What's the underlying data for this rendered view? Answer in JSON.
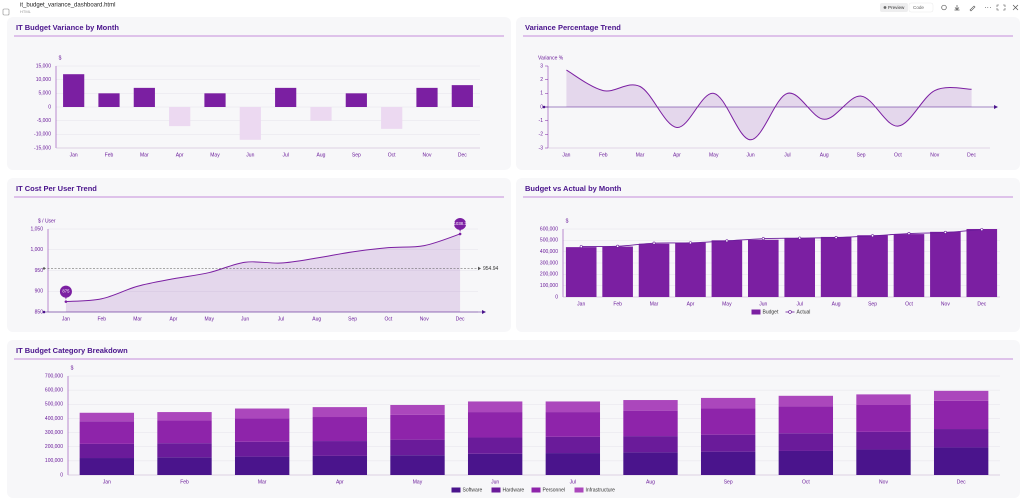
{
  "header": {
    "file_name": "it_budget_variance_dashboard.html",
    "file_type": "HTML",
    "preview_button": "Preview",
    "code_button": "Code"
  },
  "chart_data": [
    {
      "type": "bar",
      "title": "IT Budget Variance by Month",
      "y_label": "$",
      "categories": [
        "Jan",
        "Feb",
        "Mar",
        "Apr",
        "May",
        "Jun",
        "Jul",
        "Aug",
        "Sep",
        "Oct",
        "Nov",
        "Dec"
      ],
      "values": [
        12000,
        5000,
        7000,
        -7000,
        5000,
        -12000,
        7000,
        -5000,
        5000,
        -8000,
        7000,
        8000
      ],
      "color": "#7b1fa2",
      "negative_color": "#ecd9f1",
      "ylim": [
        -15000,
        15000
      ],
      "yticks": [
        {
          "value": -15000,
          "label": "-15,000"
        },
        {
          "value": -10000,
          "label": "-10,000"
        },
        {
          "value": -5000,
          "label": "-5,000"
        },
        0,
        {
          "value": 5000,
          "label": "5,000"
        },
        {
          "value": 10000,
          "label": "10,000"
        },
        {
          "value": 15000,
          "label": "15,000"
        }
      ],
      "grid": true
    },
    {
      "type": "line",
      "title": "Variance Percentage Trend",
      "y_label": "Variance %",
      "categories": [
        "Jan",
        "Feb",
        "Mar",
        "Apr",
        "May",
        "Jun",
        "Jul",
        "Aug",
        "Sep",
        "Oct",
        "Nov",
        "Dec"
      ],
      "values": [
        2.7,
        1.2,
        1.5,
        -1.5,
        1,
        -2.4,
        1,
        -0.9,
        0.8,
        -1.4,
        1.2,
        1.3
      ],
      "color": "#7b1fa2",
      "ylim": [
        -3,
        3
      ],
      "yticks": [
        -3,
        -2,
        -1,
        0,
        1,
        2,
        3
      ],
      "grid": false
    },
    {
      "type": "line",
      "title": "IT Cost Per User Trend",
      "y_label": "$ / User",
      "categories": [
        "Jan",
        "Feb",
        "Mar",
        "Apr",
        "May",
        "Jun",
        "Jul",
        "Aug",
        "Sep",
        "Oct",
        "Nov",
        "Dec"
      ],
      "values": [
        875,
        882,
        912,
        930,
        945,
        970,
        968,
        980,
        995,
        1005,
        1010,
        1038.1
      ],
      "reference_line": 954.94,
      "color": "#7b1fa2",
      "ylim": [
        850,
        1050
      ],
      "yticks": [
        850,
        900,
        950,
        {
          "value": 1000,
          "label": "1,000"
        },
        {
          "value": 1050,
          "label": "1,050"
        }
      ],
      "grid": true,
      "label_extremes": true
    },
    {
      "type": "combo",
      "title": "Budget vs Actual by Month",
      "y_label": "$",
      "categories": [
        "Jan",
        "Feb",
        "Mar",
        "Apr",
        "May",
        "Jun",
        "Jul",
        "Aug",
        "Sep",
        "Oct",
        "Nov",
        "Dec"
      ],
      "series": [
        {
          "name": "Budget",
          "kind": "bar",
          "color": "#7b1fa2",
          "values": [
            440000,
            445000,
            470000,
            480000,
            500000,
            505000,
            520000,
            530000,
            545000,
            555000,
            575000,
            600000
          ]
        },
        {
          "name": "Actual",
          "kind": "line",
          "color": "#6a1b9a",
          "values": [
            445000,
            448000,
            475000,
            478000,
            495000,
            515000,
            520000,
            525000,
            540000,
            560000,
            570000,
            595000
          ]
        }
      ],
      "ylim": [
        0,
        600000
      ],
      "yticks": [
        0,
        {
          "value": 100000,
          "label": "100,000"
        },
        {
          "value": 200000,
          "label": "200,000"
        },
        {
          "value": 300000,
          "label": "300,000"
        },
        {
          "value": 400000,
          "label": "400,000"
        },
        {
          "value": 500000,
          "label": "500,000"
        },
        {
          "value": 600000,
          "label": "600,000"
        }
      ],
      "grid": true,
      "legend": "bottom"
    },
    {
      "type": "stacked_bar",
      "title": "IT Budget Category Breakdown",
      "y_label": "$",
      "categories": [
        "Jan",
        "Feb",
        "Mar",
        "Apr",
        "May",
        "Jun",
        "Jul",
        "Aug",
        "Sep",
        "Oct",
        "Nov",
        "Dec"
      ],
      "series": [
        {
          "name": "Software",
          "color": "#4a148c",
          "values": [
            120000,
            125000,
            130000,
            135000,
            140000,
            150000,
            155000,
            160000,
            165000,
            170000,
            180000,
            195000
          ]
        },
        {
          "name": "Hardware",
          "color": "#6a1b9a",
          "values": [
            100000,
            100000,
            105000,
            105000,
            110000,
            115000,
            115000,
            115000,
            120000,
            125000,
            125000,
            130000
          ]
        },
        {
          "name": "Personnel",
          "color": "#8e24aa",
          "values": [
            160000,
            160000,
            165000,
            170000,
            175000,
            180000,
            175000,
            180000,
            185000,
            190000,
            190000,
            200000
          ]
        },
        {
          "name": "Infrastructure",
          "color": "#ab47bc",
          "values": [
            60000,
            60000,
            70000,
            70000,
            70000,
            75000,
            75000,
            75000,
            75000,
            75000,
            75000,
            70000
          ]
        }
      ],
      "ylim": [
        0,
        700000
      ],
      "yticks": [
        0,
        {
          "value": 100000,
          "label": "100,000"
        },
        {
          "value": 200000,
          "label": "200,000"
        },
        {
          "value": 300000,
          "label": "300,000"
        },
        {
          "value": 400000,
          "label": "400,000"
        },
        {
          "value": 500000,
          "label": "500,000"
        },
        {
          "value": 600000,
          "label": "600,000"
        },
        {
          "value": 700000,
          "label": "700,000"
        }
      ],
      "grid": true,
      "legend": "bottom"
    }
  ]
}
